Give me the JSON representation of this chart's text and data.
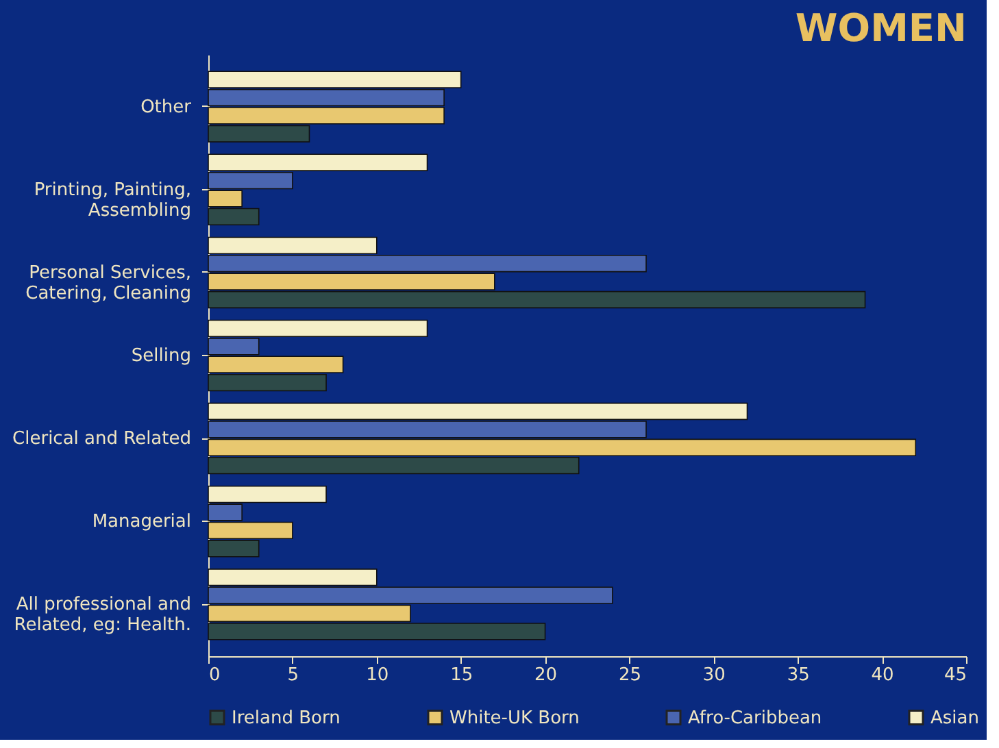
{
  "chart_data": {
    "type": "bar",
    "orientation": "horizontal",
    "title": "WOMEN",
    "categories": [
      "Other",
      "Printing, Painting, Assembling",
      "Personal Services, Catering, Cleaning",
      "Selling",
      "Clerical and Related",
      "Managerial",
      "All professional and Related, eg: Health."
    ],
    "series": [
      {
        "name": "Ireland Born",
        "color": "#2d4a48",
        "values": [
          6,
          3,
          39,
          7,
          22,
          3,
          20
        ]
      },
      {
        "name": "White-UK Born",
        "color": "#e8c870",
        "values": [
          14,
          2,
          17,
          8,
          42,
          5,
          12
        ]
      },
      {
        "name": "Afro-Caribbean",
        "color": "#4a65b0",
        "values": [
          14,
          5,
          26,
          3,
          26,
          2,
          24
        ]
      },
      {
        "name": "Asian",
        "color": "#f5efc8",
        "values": [
          15,
          13,
          10,
          13,
          32,
          7,
          10
        ]
      }
    ],
    "xlim": [
      0,
      45
    ],
    "xticks": [
      0,
      5,
      10,
      15,
      20,
      25,
      30,
      35,
      40,
      45
    ],
    "grid": false,
    "legend": "bottom"
  }
}
